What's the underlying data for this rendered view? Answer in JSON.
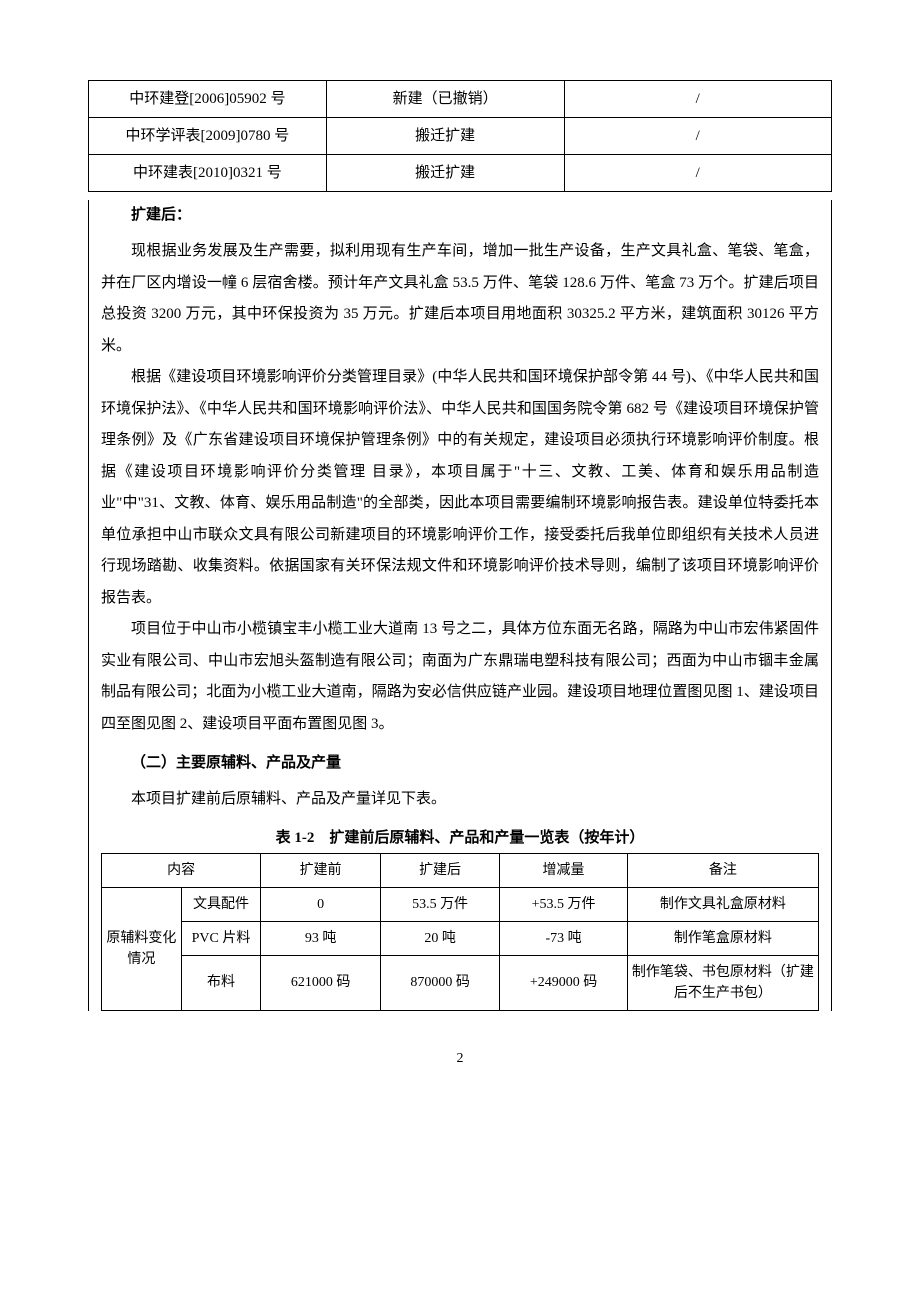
{
  "table1": {
    "rows": [
      [
        "中环建登[2006]05902 号",
        "新建（已撤销）",
        "/"
      ],
      [
        "中环学评表[2009]0780 号",
        "搬迁扩建",
        "/"
      ],
      [
        "中环建表[2010]0321 号",
        "搬迁扩建",
        "/"
      ]
    ]
  },
  "heading_expansion": "扩建后：",
  "para1": "现根据业务发展及生产需要，拟利用现有生产车间，增加一批生产设备，生产文具礼盒、笔袋、笔盒，并在厂区内增设一幢 6 层宿舍楼。预计年产文具礼盒 53.5 万件、笔袋 128.6 万件、笔盒 73 万个。扩建后项目总投资 3200 万元，其中环保投资为 35 万元。扩建后本项目用地面积 30325.2 平方米，建筑面积 30126 平方米。",
  "para2": "根据《建设项目环境影响评价分类管理目录》(中华人民共和国环境保护部令第 44 号)、《中华人民共和国环境保护法》、《中华人民共和国环境影响评价法》、中华人民共和国国务院令第 682 号《建设项目环境保护管理条例》及《广东省建设项目环境保护管理条例》中的有关规定，建设项目必须执行环境影响评价制度。根据《建设项目环境影响评价分类管理 目录》，本项目属于\"十三、文教、工美、体育和娱乐用品制造业\"中\"31、文教、体育、娱乐用品制造\"的全部类，因此本项目需要编制环境影响报告表。建设单位特委托本单位承担中山市联众文具有限公司新建项目的环境影响评价工作，接受委托后我单位即组织有关技术人员进行现场踏勘、收集资料。依据国家有关环保法规文件和环境影响评价技术导则，编制了该项目环境影响评价报告表。",
  "para3": "项目位于中山市小榄镇宝丰小榄工业大道南 13 号之二，具体方位东面无名路，隔路为中山市宏伟紧固件实业有限公司、中山市宏旭头盔制造有限公司；南面为广东鼎瑞电塑科技有限公司；西面为中山市锢丰金属制品有限公司；北面为小榄工业大道南，隔路为安必信供应链产业园。建设项目地理位置图见图 1、建设项目四至图见图 2、建设项目平面布置图见图 3。",
  "heading_materials": "（二）主要原辅料、产品及产量",
  "para4": "本项目扩建前后原辅料、产品及产量详见下表。",
  "table2_caption": "表 1-2　扩建前后原辅料、产品和产量一览表（按年计）",
  "table2": {
    "header": [
      "内容",
      "扩建前",
      "扩建后",
      "增减量",
      "备注"
    ],
    "group_label": "原辅料变化情况",
    "rows": [
      {
        "name": "文具配件",
        "before": "0",
        "after": "53.5 万件",
        "change": "+53.5 万件",
        "remark": "制作文具礼盒原材料"
      },
      {
        "name": "PVC 片料",
        "before": "93 吨",
        "after": "20 吨",
        "change": "-73 吨",
        "remark": "制作笔盒原材料"
      },
      {
        "name": "布料",
        "before": "621000 码",
        "after": "870000 码",
        "change": "+249000 码",
        "remark": "制作笔袋、书包原材料（扩建后不生产书包）"
      }
    ]
  },
  "page_number": "2"
}
